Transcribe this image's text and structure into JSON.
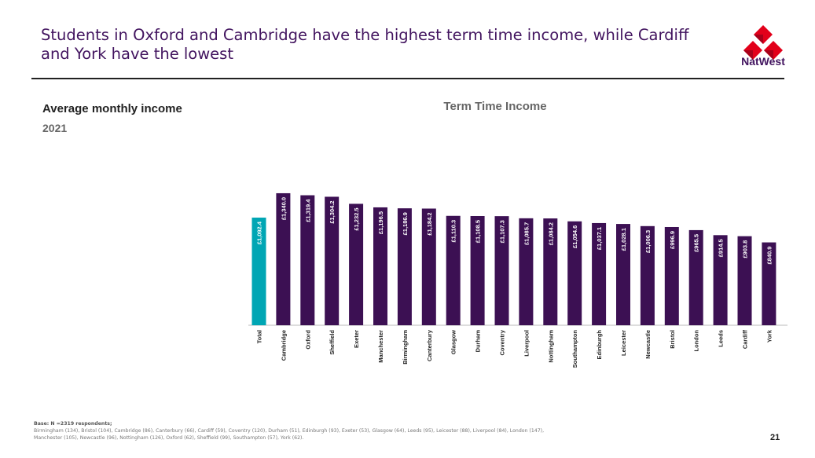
{
  "headline": "Students in Oxford and Cambridge have the highest term time income, while Cardiff and York have the lowest",
  "brand": {
    "name": "NatWest",
    "color": "#42145f",
    "logo_color": "#e2001a",
    "logo_icon": "natwest-cubes-icon"
  },
  "subtitle": "Average monthly income",
  "year": "2021",
  "base": {
    "label": "Base: N =2319 respondents;",
    "line1": "Birmingham (134), Bristol (104), Cambridge (86), Canterbury (66), Cardiff (59), Coventry (120), Durham (51), Edinburgh (93), Exeter (53), Glasgow (64), Leeds (95), Leicester (88), Liverpool (84), London (147),",
    "line2": "Manchester (105), Newcastle (96), Nottingham (126), Oxford (62), Sheffield (99), Southampton (57), York (62)."
  },
  "page_number": "21",
  "chart_data": {
    "type": "bar",
    "title": "Term Time Income",
    "xlabel": "",
    "ylabel": "",
    "ylim": [
      0,
      1400
    ],
    "grid": false,
    "categories": [
      "Total",
      "Cambridge",
      "Oxford",
      "Sheffield",
      "Exeter",
      "Manchester",
      "Birmingham",
      "Canterbury",
      "Glasgow",
      "Durham",
      "Coventry",
      "Liverpool",
      "Nottingham",
      "Southampton",
      "Edinburgh",
      "Leicester",
      "Newcastle",
      "Bristol",
      "London",
      "Leeds",
      "Cardiff",
      "York"
    ],
    "values": [
      1092.4,
      1340.0,
      1319.4,
      1304.2,
      1232.5,
      1196.5,
      1186.9,
      1184.2,
      1110.3,
      1108.5,
      1107.3,
      1085.7,
      1084.2,
      1054.6,
      1037.1,
      1028.1,
      1006.3,
      996.9,
      965.5,
      914.5,
      903.8,
      840.9
    ],
    "data_labels": [
      "£1,092.4",
      "£1,340.0",
      "£1,319.4",
      "£1,304.2",
      "£1,232.5",
      "£1,196.5",
      "£1,186.9",
      "£1,184.2",
      "£1,110.3",
      "£1,108.5",
      "£1,107.3",
      "£1,085.7",
      "£1,084.2",
      "£1,054.6",
      "£1,037.1",
      "£1,028.1",
      "£1,006.3",
      "£996.9",
      "£965.5",
      "£914.5",
      "£903.8",
      "£840.9"
    ],
    "colors": {
      "highlight": "#00a6b4",
      "bar": "#3c1053",
      "axis": "#bbbbbb",
      "label": "#ffffff"
    }
  }
}
